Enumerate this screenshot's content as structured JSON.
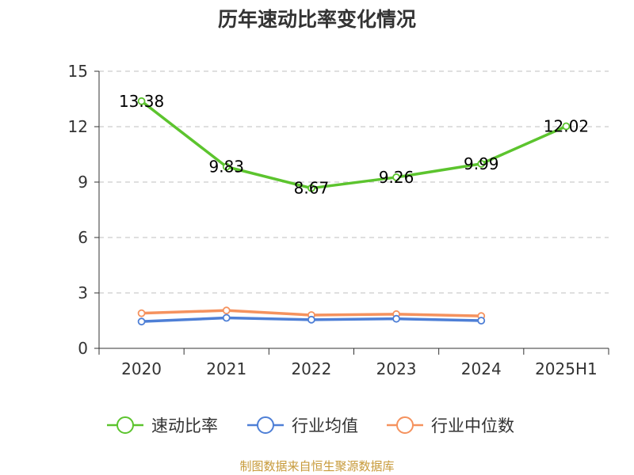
{
  "chart_data": {
    "type": "line",
    "title": "历年速动比率变化情况",
    "categories": [
      "2020",
      "2021",
      "2022",
      "2023",
      "2024",
      "2025H1"
    ],
    "ylim": [
      0,
      15
    ],
    "yticks": [
      "0",
      "3",
      "6",
      "9",
      "12",
      "15"
    ],
    "grid": true,
    "legend_placement": "bottom",
    "series": [
      {
        "name": "速动比率",
        "color": "#5cc42e",
        "values": [
          13.38,
          9.83,
          8.67,
          9.26,
          9.99,
          12.02
        ],
        "labels": [
          "13.38",
          "9.83",
          "8.67",
          "9.26",
          "9.99",
          "12.02"
        ]
      },
      {
        "name": "行业均值",
        "color": "#4e7fd6",
        "values": [
          1.45,
          1.65,
          1.55,
          1.6,
          1.5,
          null
        ]
      },
      {
        "name": "行业中位数",
        "color": "#f5925e",
        "values": [
          1.9,
          2.05,
          1.8,
          1.85,
          1.75,
          null
        ]
      }
    ],
    "source": "制图数据来自恒生聚源数据库"
  }
}
